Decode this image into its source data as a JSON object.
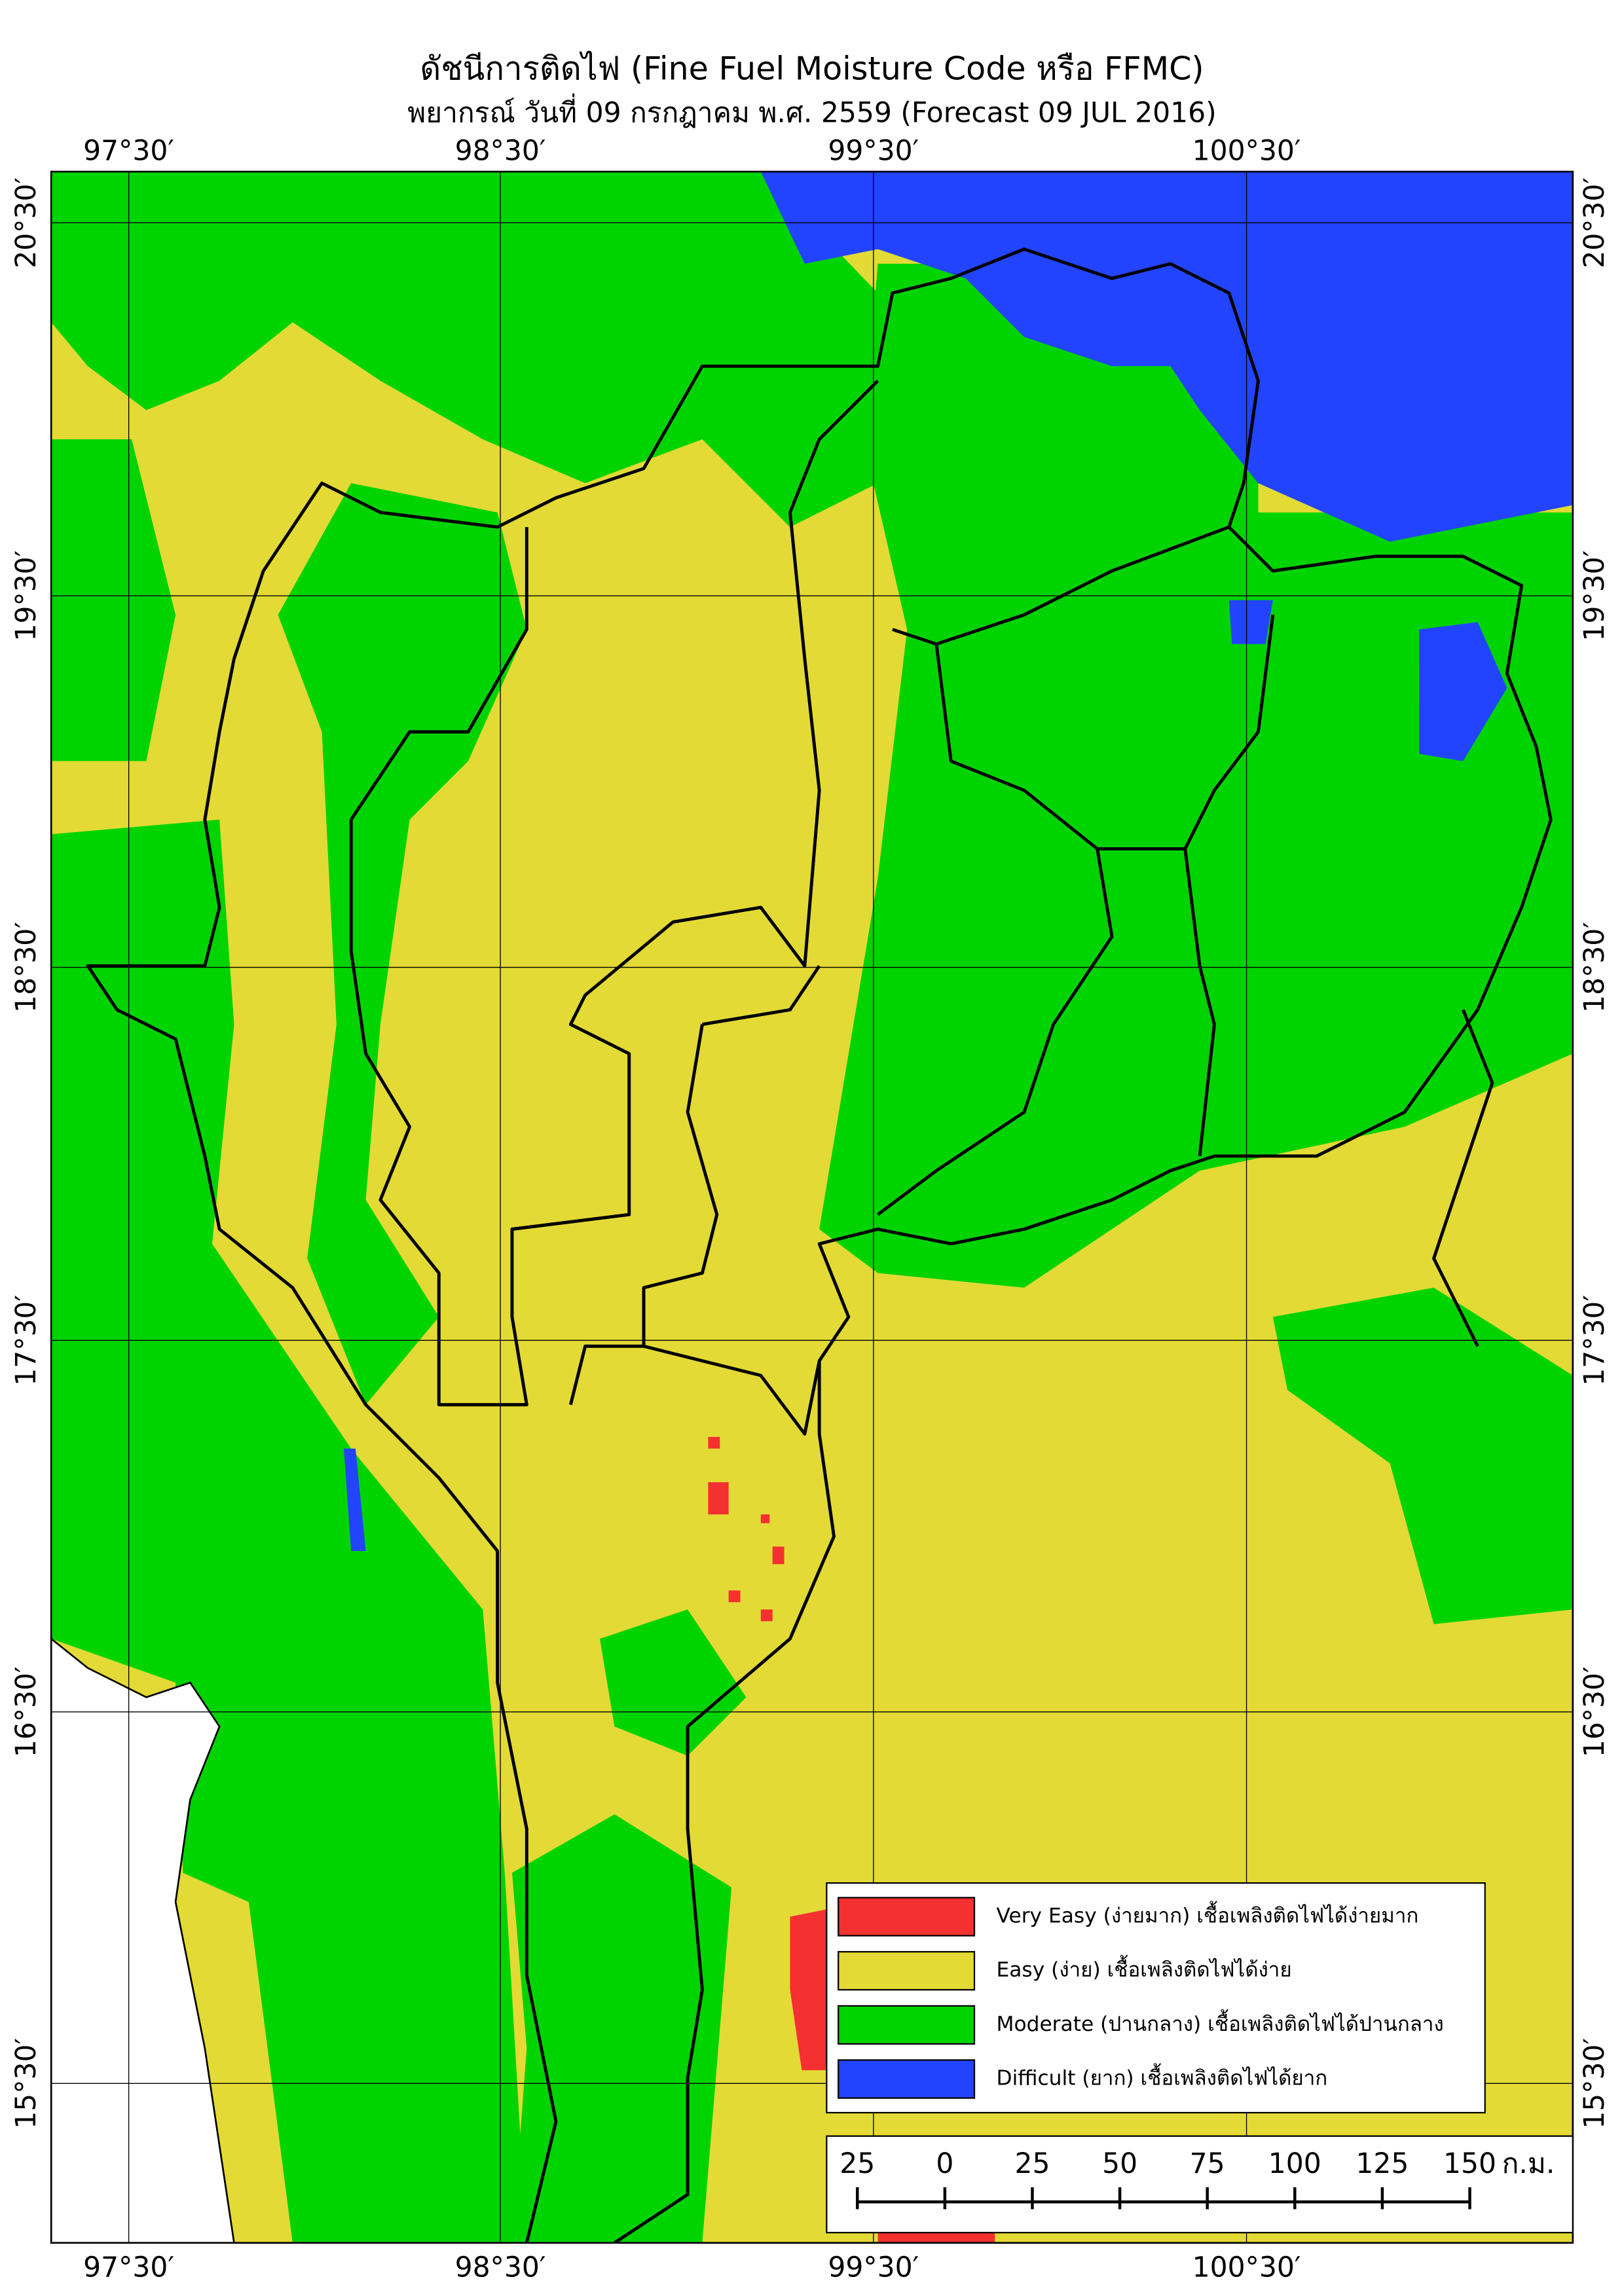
{
  "title": "ดัชนีการติดไฟ (Fine Fuel Moisture Code หรือ FFMC)",
  "subtitle": "พยากรณ์ วันที่ 09 กรกฎาคม พ.ศ. 2559 (Forecast 09 JUL 2016)",
  "longitude_labels": [
    "97°30′",
    "98°30′",
    "99°30′",
    "100°30′"
  ],
  "latitude_labels": [
    "20°30′",
    "19°30′",
    "18°30′",
    "17°30′",
    "16°30′",
    "15°30′"
  ],
  "legend": [
    {
      "label": "Very Easy (ง่ายมาก) เชื้อเพลิงติดไฟได้ง่ายมาก",
      "color": "#f43030"
    },
    {
      "label": "Easy (ง่าย) เชื้อเพลิงติดไฟได้ง่าย",
      "color": "#e3da35"
    },
    {
      "label": "Moderate (ปานกลาง) เชื้อเพลิงติดไฟได้ปานกลาง",
      "color": "#00d400"
    },
    {
      "label": "Difficult (ยาก) เชื้อเพลิงติดไฟได้ยาก",
      "color": "#2244ff"
    }
  ],
  "scale_bar": {
    "ticks": [
      "25",
      "0",
      "25",
      "50",
      "75",
      "100",
      "125",
      "150"
    ],
    "unit": "ก.ม."
  }
}
